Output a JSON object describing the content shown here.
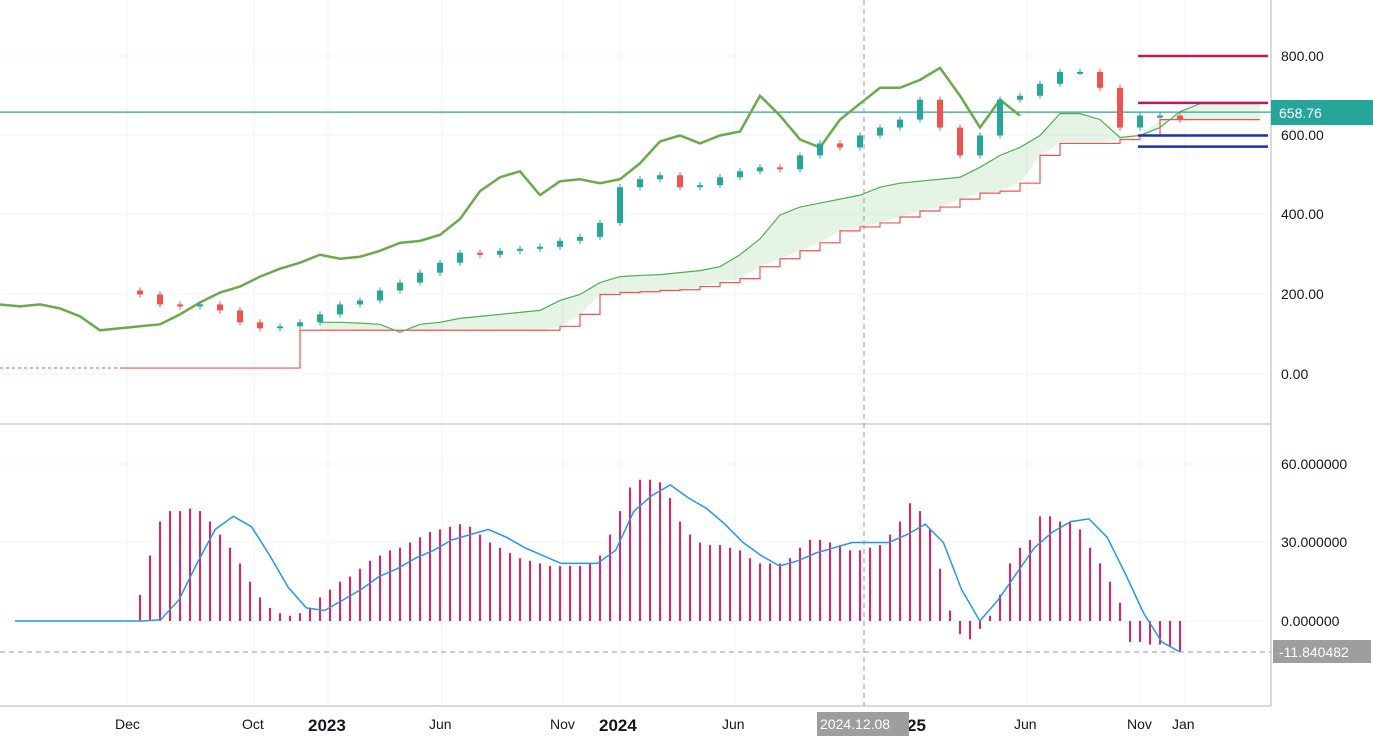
{
  "chart_data": [
    {
      "type": "candlestick",
      "panel": "price",
      "y_ticks": [
        "800.00",
        "600.00",
        "400.00",
        "200.00",
        "0.00"
      ],
      "y_tick_values": [
        800,
        600,
        400,
        200,
        0
      ],
      "ylim": [
        -120,
        930
      ],
      "last_price": {
        "value": 658.76,
        "label": "658.76",
        "color": "#26a69a"
      },
      "candle_closes": [
        200,
        175,
        170,
        175,
        160,
        130,
        115,
        120,
        130,
        150,
        175,
        185,
        210,
        230,
        255,
        280,
        305,
        300,
        310,
        315,
        320,
        335,
        345,
        380,
        470,
        490,
        500,
        470,
        475,
        495,
        510,
        520,
        515,
        550,
        580,
        570,
        600,
        620,
        640,
        690,
        620,
        550,
        600,
        690,
        700,
        730,
        760,
        760,
        720,
        620,
        650,
        650,
        640
      ],
      "lagging_span": [
        175,
        170,
        175,
        165,
        145,
        110,
        115,
        120,
        125,
        150,
        180,
        205,
        220,
        245,
        265,
        280,
        300,
        290,
        295,
        310,
        330,
        335,
        350,
        390,
        460,
        495,
        510,
        450,
        485,
        490,
        480,
        490,
        530,
        585,
        600,
        580,
        600,
        610,
        700,
        650,
        590,
        570,
        640,
        680,
        720,
        720,
        740,
        770,
        700,
        620,
        690,
        650
      ],
      "span_a": [
        130,
        130,
        128,
        125,
        105,
        125,
        130,
        140,
        145,
        150,
        155,
        160,
        185,
        200,
        230,
        245,
        248,
        250,
        255,
        260,
        270,
        300,
        340,
        400,
        420,
        430,
        440,
        450,
        470,
        480,
        485,
        490,
        495,
        520,
        550,
        570,
        600,
        655,
        655,
        640,
        595,
        600,
        620,
        660,
        680,
        680,
        680,
        680
      ],
      "span_b": [
        15,
        15,
        15,
        15,
        15,
        15,
        15,
        15,
        15,
        15,
        15,
        15,
        15,
        15,
        15,
        110,
        110,
        110,
        110,
        110,
        110,
        110,
        110,
        110,
        110,
        110,
        110,
        110,
        120,
        150,
        200,
        205,
        207,
        210,
        212,
        220,
        230,
        240,
        270,
        290,
        310,
        330,
        360,
        370,
        380,
        395,
        410,
        420,
        440,
        455,
        460,
        480,
        550,
        580,
        580,
        580,
        590,
        600,
        640,
        640,
        640,
        640,
        640,
        640
      ],
      "levels": [
        {
          "value": 800,
          "color": "#c2185b"
        },
        {
          "value": 682,
          "color": "#c2185b"
        },
        {
          "value": 600,
          "color": "#1e2fbf"
        },
        {
          "value": 572,
          "color": "#1e2fbf"
        }
      ],
      "colors": {
        "up": "#26a69a",
        "down": "#ef5350",
        "lagging": "#6aaa4a",
        "span_a": "#4caf50",
        "span_b": "#ef5350"
      }
    },
    {
      "type": "bar+line",
      "panel": "oscillator",
      "y_ticks": [
        "60.000000",
        "30.000000",
        "0.000000"
      ],
      "y_tick_values": [
        60,
        30,
        0
      ],
      "ylim": [
        -30,
        70
      ],
      "last_value": {
        "value": -11.840482,
        "label": "-11.840482"
      },
      "histogram": [
        10,
        25,
        38,
        42,
        42,
        43,
        42,
        38,
        33,
        28,
        22,
        15,
        9,
        5,
        3,
        2,
        3,
        5,
        9,
        12,
        15,
        17,
        20,
        23,
        25,
        27,
        28,
        30,
        32,
        34,
        35,
        36,
        37,
        36,
        33,
        30,
        28,
        26,
        24,
        23,
        22,
        21,
        21,
        21,
        21,
        22,
        25,
        33,
        42,
        51,
        54,
        54,
        53,
        47,
        38,
        33,
        30,
        29,
        29,
        28,
        27,
        24,
        22,
        22,
        22,
        24,
        28,
        31,
        31,
        30,
        29,
        27,
        27,
        28,
        29,
        33,
        38,
        45,
        42,
        35,
        20,
        4,
        -5,
        -7,
        -3,
        2,
        10,
        22,
        28,
        31,
        40,
        40,
        38,
        38,
        35,
        28,
        22,
        15,
        7,
        -8,
        -8,
        -9,
        -9,
        -10,
        -12
      ],
      "signal": [
        0,
        0,
        0,
        0,
        0,
        0,
        0,
        0,
        0.5,
        8,
        22,
        35,
        40,
        36,
        25,
        13,
        5,
        4,
        8,
        12,
        17,
        20,
        24,
        27,
        31,
        33,
        35,
        32,
        28,
        25,
        22,
        22,
        22,
        27,
        42,
        48,
        52,
        47,
        43,
        37,
        30,
        25,
        21,
        23,
        26,
        28,
        30,
        30,
        30,
        33,
        37,
        30,
        12,
        0,
        8,
        18,
        28,
        34,
        38,
        39,
        32,
        18,
        3,
        -8,
        -11.84
      ],
      "colors": {
        "histogram": "#e91e63",
        "signal": "#2196f3"
      }
    }
  ],
  "x_axis": {
    "ticks": [
      {
        "label": "Dec",
        "bold": false
      },
      {
        "label": "Oct",
        "bold": false
      },
      {
        "label": "2023",
        "bold": true
      },
      {
        "label": "Jun",
        "bold": false
      },
      {
        "label": "Nov",
        "bold": false
      },
      {
        "label": "2024",
        "bold": true
      },
      {
        "label": "Jun",
        "bold": false
      },
      {
        "label": "25",
        "bold": true
      },
      {
        "label": "Jun",
        "bold": false
      },
      {
        "label": "Nov",
        "bold": false
      },
      {
        "label": "Jan",
        "bold": false
      }
    ],
    "crosshair_label": "2024.12.08"
  }
}
